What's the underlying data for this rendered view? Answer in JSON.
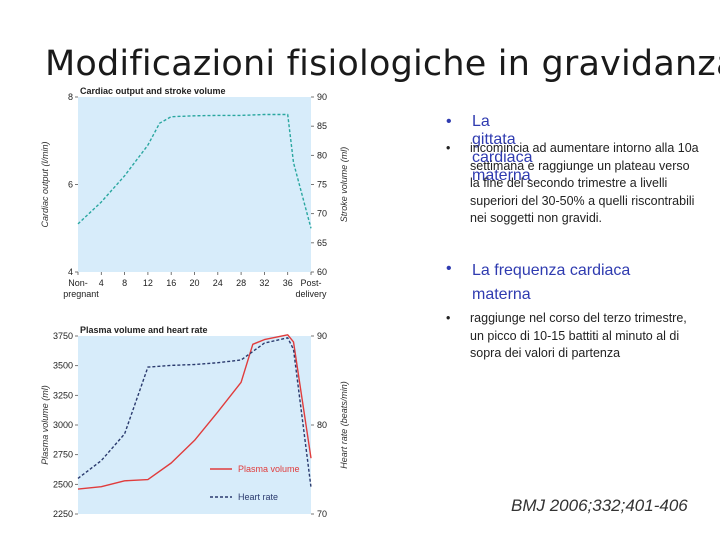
{
  "slide": {
    "title": "Modificazioni fisiologiche in gravidanza",
    "bullets": [
      {
        "level": 1,
        "text": "La gittata cardiaca materna"
      },
      {
        "level": 2,
        "text": "incomincia ad aumentare intorno alla 10a settimana e raggiunge un plateau verso la fine del secondo trimestre a livelli superiori del 30-50% a quelli riscontrabili nei soggetti non gravidi."
      },
      {
        "level": 1,
        "text": "La frequenza cardiaca materna"
      },
      {
        "level": 2,
        "text": "raggiunge nel corso del terzo trimestre, un picco di 10-15 battiti al minuto al di sopra dei valori di partenza"
      }
    ],
    "citation": "BMJ 2006;332;401-406",
    "colors": {
      "bullet_blue": "#2f3bb0",
      "chart_bg": "#d7ecfa",
      "teal": "#2aa7a0",
      "red": "#e03c3c",
      "navy": "#2a3a6e"
    }
  },
  "chart_data": [
    {
      "type": "line",
      "title": "Cardiac output and stroke volume",
      "xlabel": "",
      "x_ticks": [
        "Non-pregnant",
        "4",
        "8",
        "12",
        "16",
        "20",
        "24",
        "28",
        "32",
        "36",
        "Post-delivery"
      ],
      "y_left": {
        "label": "Cardiac output (l/min)",
        "ticks": [
          4,
          6,
          8
        ],
        "ylim": [
          4,
          8
        ]
      },
      "y_right": {
        "label": "Stroke volume (ml)",
        "ticks": [
          60,
          65,
          70,
          75,
          80,
          85,
          90
        ],
        "ylim": [
          60,
          90
        ]
      },
      "series": [
        {
          "axis": "left",
          "style": "dashed",
          "color": "#2aa7a0",
          "x": [
            "Non-pregnant",
            "4",
            "8",
            "12",
            "14",
            "16",
            "20",
            "24",
            "28",
            "32",
            "36",
            "37",
            "Post-delivery"
          ],
          "values": [
            5.1,
            5.6,
            6.2,
            6.9,
            7.4,
            7.55,
            7.57,
            7.58,
            7.58,
            7.6,
            7.6,
            6.5,
            5.0
          ]
        }
      ]
    },
    {
      "type": "line",
      "title": "Plasma volume and heart rate",
      "xlabel": "",
      "y_left": {
        "label": "Plasma volume (ml)",
        "ticks": [
          2250,
          2500,
          2750,
          3000,
          3250,
          3500,
          3750
        ],
        "ylim": [
          2250,
          3750
        ]
      },
      "y_right": {
        "label": "Heart rate (beats/min)",
        "ticks": [
          70,
          80,
          90
        ],
        "ylim": [
          70,
          90
        ]
      },
      "series": [
        {
          "name": "Plasma volume",
          "axis": "left",
          "style": "solid",
          "color": "#e03c3c",
          "x": [
            "Non-pregnant",
            "4",
            "8",
            "12",
            "16",
            "20",
            "24",
            "28",
            "30",
            "32",
            "36",
            "37",
            "Post-delivery"
          ],
          "values": [
            2460,
            2480,
            2530,
            2540,
            2680,
            2870,
            3110,
            3360,
            3680,
            3720,
            3760,
            3700,
            2720
          ]
        },
        {
          "name": "Heart rate",
          "axis": "right",
          "style": "dashed",
          "color": "#2a3a6e",
          "x": [
            "Non-pregnant",
            "4",
            "8",
            "12",
            "16",
            "20",
            "24",
            "28",
            "32",
            "36",
            "37",
            "Post-delivery"
          ],
          "values": [
            74,
            76,
            79,
            86.5,
            86.7,
            86.8,
            87,
            87.3,
            89.2,
            89.8,
            88.5,
            73
          ]
        }
      ],
      "legend": "bottom-right"
    }
  ]
}
